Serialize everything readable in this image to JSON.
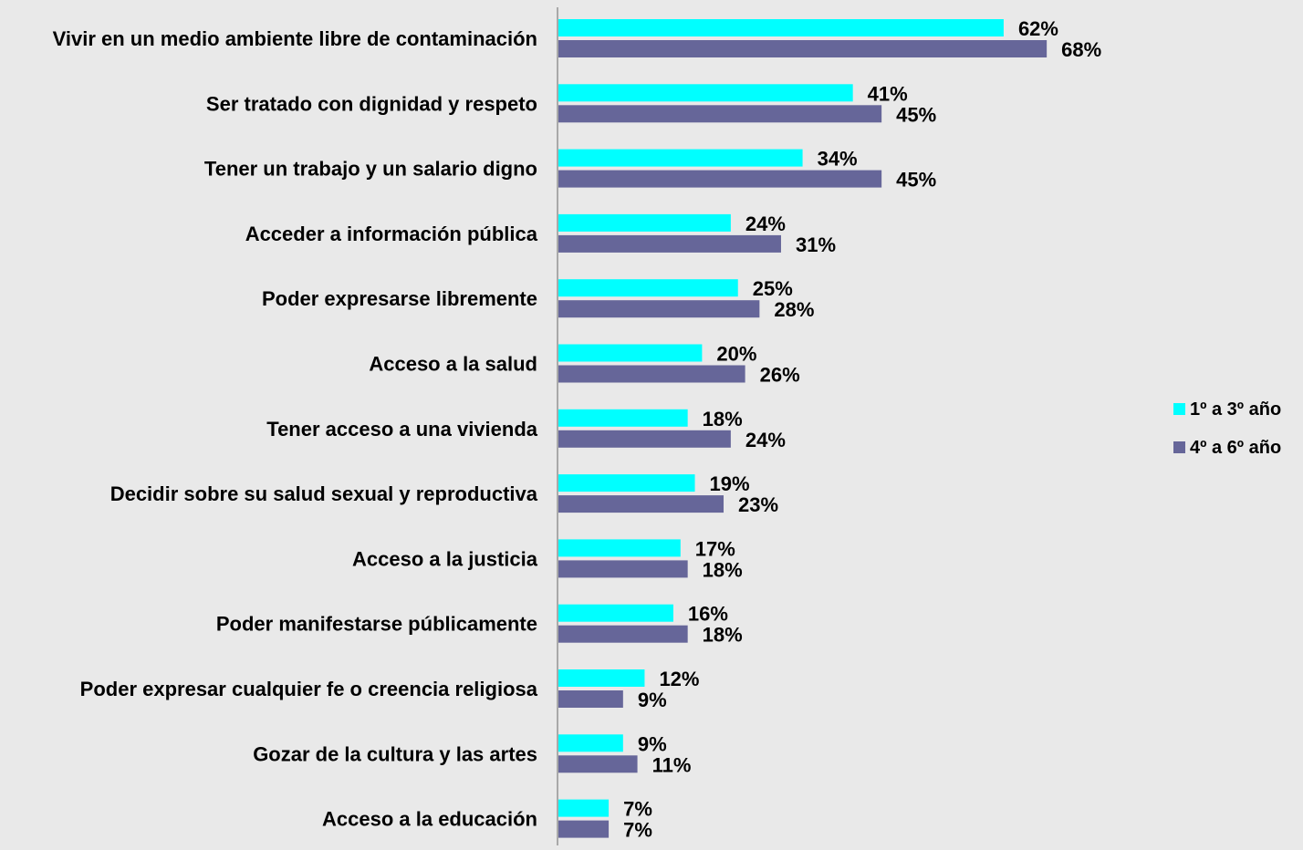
{
  "chart_data": {
    "type": "bar",
    "orientation": "horizontal",
    "categories": [
      "Vivir en un medio ambiente libre de contaminación",
      "Ser tratado con dignidad y respeto",
      "Tener un trabajo y un salario digno",
      "Acceder a información pública",
      "Poder expresarse libremente",
      "Acceso a la salud",
      "Tener acceso a una vivienda",
      "Decidir sobre su salud sexual y reproductiva",
      "Acceso a la justicia",
      "Poder manifestarse públicamente",
      "Poder expresar cualquier fe o creencia religiosa",
      "Gozar de la cultura y las artes",
      "Acceso a la educación"
    ],
    "series": [
      {
        "name": "1º a 3º año",
        "color": "#00ffff",
        "values": [
          62,
          41,
          34,
          24,
          25,
          20,
          18,
          19,
          17,
          16,
          12,
          9,
          7
        ],
        "labels": [
          "62%",
          "41%",
          "34%",
          "24%",
          "25%",
          "20%",
          "18%",
          "19%",
          "17%",
          "16%",
          "12%",
          "9%",
          "7%"
        ]
      },
      {
        "name": "4º a 6º año",
        "color": "#666699",
        "values": [
          68,
          45,
          45,
          31,
          28,
          26,
          24,
          23,
          18,
          18,
          9,
          11,
          7
        ],
        "labels": [
          "68%",
          "45%",
          "45%",
          "31%",
          "28%",
          "26%",
          "24%",
          "23%",
          "18%",
          "18%",
          "9%",
          "11%",
          "7%"
        ]
      }
    ],
    "title": "",
    "xlabel": "",
    "ylabel": "",
    "xlim": [
      0,
      100
    ],
    "grid": false,
    "legend_position": "right",
    "background": "#e9e9e9"
  }
}
